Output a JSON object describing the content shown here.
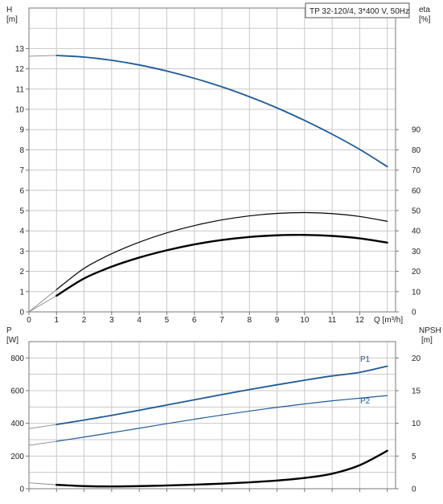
{
  "legend_box": "TP 32-120/4, 3*400 V, 50Hz",
  "chart_data": [
    {
      "type": "line",
      "panel": "top",
      "left_axis": {
        "label": "H",
        "unit": "[m]",
        "ylim": [
          0,
          15
        ],
        "ticks": [
          "0",
          "1",
          "2",
          "3",
          "4",
          "5",
          "6",
          "7",
          "8",
          "9",
          "10",
          "11",
          "12",
          "13"
        ]
      },
      "right_axis": {
        "label": "eta",
        "unit": "[%]",
        "ylim": [
          0,
          150
        ],
        "ticks": [
          "0",
          "10",
          "20",
          "30",
          "40",
          "50",
          "60",
          "70",
          "80",
          "90"
        ]
      },
      "x_axis": {
        "label": "Q [m³/h]",
        "xlim": [
          0,
          13.3
        ],
        "ticks": [
          "0",
          "1",
          "2",
          "3",
          "4",
          "5",
          "6",
          "7",
          "8",
          "9",
          "10",
          "11",
          "12"
        ]
      },
      "series": [
        {
          "name": "",
          "axis": "left",
          "color": "#1f5a96",
          "width": 1.8,
          "extrapolated": [
            [
              0,
              12.62
            ],
            [
              1.0,
              12.66
            ]
          ],
          "x": [
            1.0,
            2.0,
            3.0,
            4.0,
            5.0,
            6.0,
            7.0,
            8.0,
            9.0,
            10.0,
            11.0,
            12.0,
            13.0
          ],
          "y": [
            12.66,
            12.58,
            12.42,
            12.19,
            11.89,
            11.53,
            11.11,
            10.62,
            10.07,
            9.45,
            8.77,
            8.02,
            7.17
          ]
        },
        {
          "name": "",
          "axis": "right",
          "color": "#000000",
          "width": 1.2,
          "extrapolated": [
            [
              0,
              0
            ],
            [
              1.0,
              11
            ]
          ],
          "x": [
            1.0,
            2.0,
            3.0,
            4.0,
            5.0,
            6.0,
            7.0,
            8.0,
            9.0,
            10.0,
            11.0,
            12.0,
            13.0
          ],
          "y": [
            11,
            21.5,
            28.7,
            34.4,
            39.0,
            42.6,
            45.4,
            47.4,
            48.6,
            49.0,
            48.5,
            47.1,
            44.7
          ]
        },
        {
          "name": "",
          "axis": "right",
          "color": "#000000",
          "width": 2.4,
          "extrapolated": [
            [
              0,
              0
            ],
            [
              1.0,
              8
            ]
          ],
          "x": [
            1.0,
            2.0,
            3.0,
            4.0,
            5.0,
            6.0,
            7.0,
            8.0,
            9.0,
            10.0,
            11.0,
            12.0,
            13.0
          ],
          "y": [
            8,
            16.5,
            22.3,
            26.8,
            30.4,
            33.3,
            35.5,
            37.0,
            37.8,
            38.0,
            37.5,
            36.3,
            34.2
          ]
        }
      ]
    },
    {
      "type": "line",
      "panel": "bottom",
      "left_axis": {
        "label": "P",
        "unit": "[W]",
        "ylim": [
          0,
          900
        ],
        "ticks": [
          "0",
          "200",
          "400",
          "600",
          "800"
        ]
      },
      "right_axis": {
        "label": "NPSH",
        "unit": "[m]",
        "ylim": [
          0,
          22.5
        ],
        "ticks": [
          "0",
          "5",
          "10",
          "15",
          "20"
        ]
      },
      "x_axis": {
        "xlim": [
          0,
          13.3
        ]
      },
      "series": [
        {
          "name": "P1",
          "axis": "left",
          "color": "#1f5a96",
          "width": 1.8,
          "extrapolated": [
            [
              0,
              368
            ],
            [
              1.0,
              393
            ]
          ],
          "x": [
            1.0,
            2.0,
            3.0,
            4.0,
            5.0,
            6.0,
            7.0,
            8.0,
            9.0,
            10.0,
            11.0,
            12.0,
            13.0
          ],
          "y": [
            393,
            420,
            449,
            480,
            512,
            544,
            576,
            607,
            636,
            664,
            690,
            712,
            750
          ]
        },
        {
          "name": "P2",
          "axis": "left",
          "color": "#1f5a96",
          "width": 1.2,
          "extrapolated": [
            [
              0,
              266
            ],
            [
              1.0,
              290
            ]
          ],
          "x": [
            1.0,
            2.0,
            3.0,
            4.0,
            5.0,
            6.0,
            7.0,
            8.0,
            9.0,
            10.0,
            11.0,
            12.0,
            13.0
          ],
          "y": [
            290,
            316,
            343,
            370,
            398,
            425,
            451,
            475,
            498,
            519,
            538,
            554,
            570
          ]
        },
        {
          "name": "",
          "axis": "right",
          "color": "#000000",
          "width": 2.4,
          "extrapolated": [
            [
              0,
              0.9
            ],
            [
              1.0,
              0.6
            ]
          ],
          "x": [
            1.0,
            2.0,
            3.0,
            4.0,
            5.0,
            6.0,
            7.0,
            8.0,
            9.0,
            10.0,
            11.0,
            12.0,
            13.0
          ],
          "y": [
            0.6,
            0.4,
            0.35,
            0.4,
            0.5,
            0.62,
            0.78,
            0.98,
            1.25,
            1.65,
            2.3,
            3.6,
            5.8
          ]
        }
      ]
    }
  ]
}
